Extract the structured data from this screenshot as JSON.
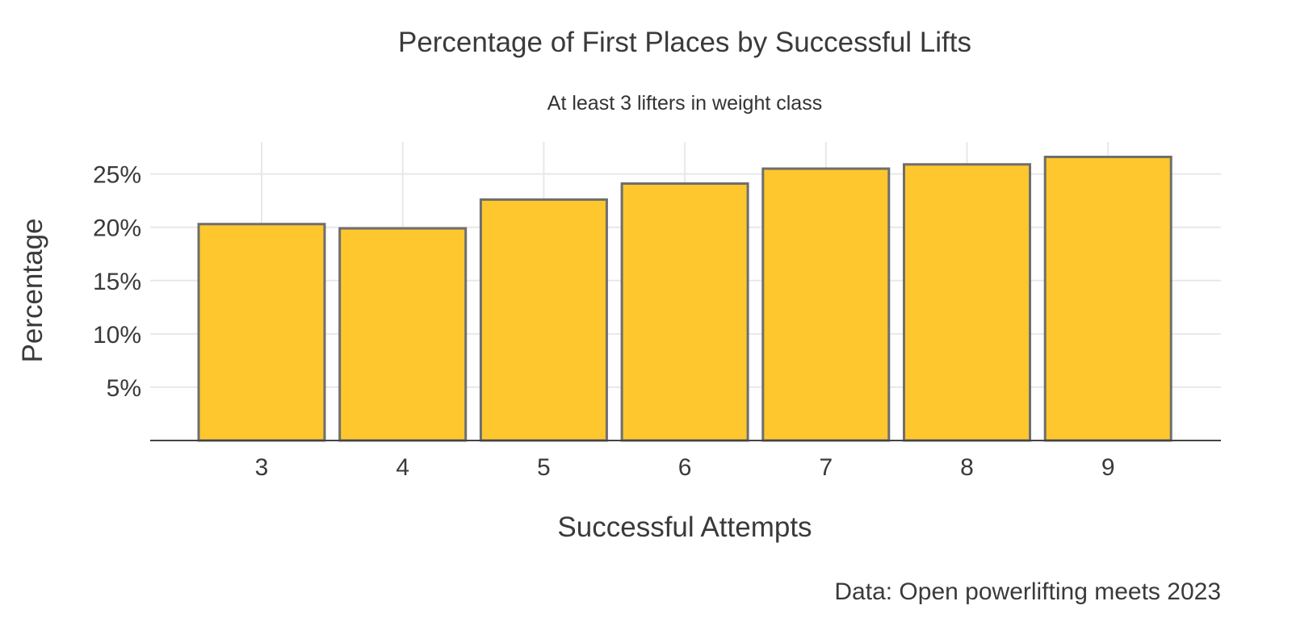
{
  "chart_data": {
    "type": "bar",
    "title": "Percentage of First Places by Successful Lifts",
    "subtitle": "At least 3 lifters in weight class",
    "xlabel": "Successful Attempts",
    "ylabel": "Percentage",
    "caption": "Data: Open powerlifting meets 2023",
    "categories": [
      "3",
      "4",
      "5",
      "6",
      "7",
      "8",
      "9"
    ],
    "values": [
      20.3,
      19.9,
      22.6,
      24.1,
      25.5,
      25.9,
      26.6
    ],
    "ylim": [
      0,
      28
    ],
    "yticks": [
      5,
      10,
      15,
      20,
      25
    ],
    "ytick_labels": [
      "5%",
      "10%",
      "15%",
      "20%",
      "25%"
    ],
    "grid": true,
    "bar_fill": "#fec72e",
    "bar_stroke": "#6e6e6e",
    "grid_color": "#e8e8e8",
    "axis_color": "#444444"
  }
}
